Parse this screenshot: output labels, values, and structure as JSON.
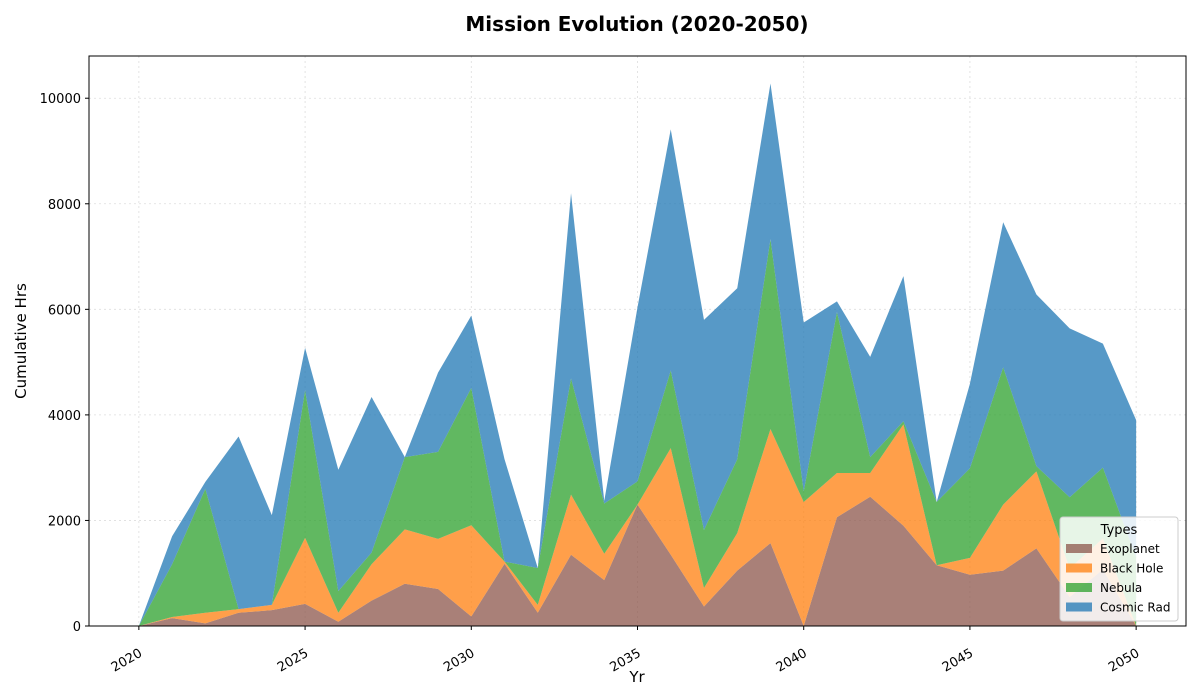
{
  "chart_data": {
    "type": "area",
    "stacked": true,
    "title": "Mission Evolution (2020-2050)",
    "xlabel": "Yr",
    "ylabel": "Cumulative Hrs",
    "xlim": [
      2018.5,
      2051.5
    ],
    "ylim": [
      0,
      10800
    ],
    "x_ticks": [
      2020,
      2025,
      2030,
      2035,
      2040,
      2045,
      2050
    ],
    "y_ticks": [
      0,
      2000,
      4000,
      6000,
      8000,
      10000
    ],
    "grid": true,
    "legend": {
      "title": "Types",
      "position": "bottom-right"
    },
    "x": [
      2020,
      2021,
      2022,
      2023,
      2024,
      2025,
      2026,
      2027,
      2028,
      2029,
      2030,
      2031,
      2032,
      2033,
      2034,
      2035,
      2036,
      2037,
      2038,
      2039,
      2040,
      2041,
      2042,
      2043,
      2044,
      2045,
      2046,
      2047,
      2048,
      2049,
      2050
    ],
    "series": [
      {
        "name": "Exoplanet",
        "color": "#8c564b",
        "values": [
          0,
          150,
          50,
          250,
          300,
          420,
          80,
          480,
          800,
          700,
          180,
          1180,
          250,
          1350,
          870,
          2300,
          1350,
          370,
          1050,
          1570,
          0,
          2060,
          2450,
          1900,
          1150,
          970,
          1050,
          1470,
          550,
          1070,
          0
        ]
      },
      {
        "name": "Black Hole",
        "color": "#ff7f0e",
        "values": [
          0,
          20,
          200,
          70,
          100,
          1250,
          170,
          690,
          1030,
          950,
          1730,
          40,
          150,
          1140,
          500,
          0,
          2020,
          350,
          710,
          2160,
          2350,
          840,
          450,
          1920,
          0,
          320,
          1250,
          1460,
          540,
          590,
          0
        ]
      },
      {
        "name": "Nebula",
        "color": "#2ca02c",
        "values": [
          0,
          1000,
          2350,
          0,
          0,
          2800,
          410,
          220,
          1370,
          1650,
          2600,
          0,
          700,
          2200,
          950,
          440,
          1470,
          1100,
          1400,
          3600,
          200,
          3050,
          300,
          60,
          1200,
          1700,
          2600,
          100,
          1350,
          1340,
          1300
        ]
      },
      {
        "name": "Cosmic Rad",
        "color": "#1f77b4",
        "values": [
          0,
          530,
          130,
          3270,
          1700,
          800,
          2300,
          2950,
          0,
          1500,
          1370,
          1940,
          0,
          3510,
          50,
          3300,
          4570,
          3980,
          3240,
          2950,
          3200,
          200,
          1900,
          2750,
          0,
          1600,
          2750,
          3250,
          3200,
          2350,
          2600
        ]
      }
    ]
  }
}
